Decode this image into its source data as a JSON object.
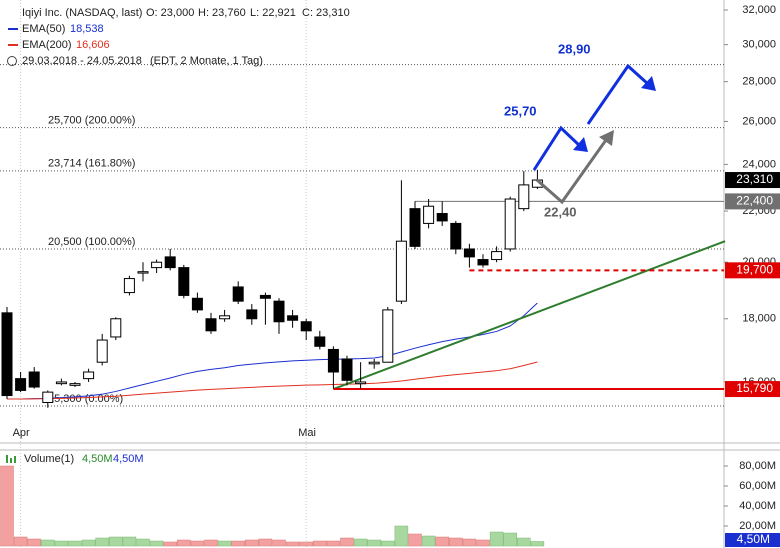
{
  "chart_data": {
    "type": "candlestick",
    "title": "Iqiyi Inc. (NASDAQ, last)",
    "header": [
      "O: 23,000",
      "H: 23,760",
      "L: 22,921",
      "C: 23,310"
    ],
    "period": "29.03.2018 - 24.05.2018",
    "period_note": "(EDT, 2 Monate, 1 Tag)",
    "yscale": "log",
    "ylim": [
      14280,
      32000
    ],
    "yticks": [
      {
        "value": 16000,
        "label": "16,000"
      },
      {
        "value": 18000,
        "label": "18,000"
      },
      {
        "value": 20000,
        "label": "20,000"
      },
      {
        "value": 22000,
        "label": "22,000"
      },
      {
        "value": 24000,
        "label": "24,000"
      },
      {
        "value": 26000,
        "label": "26,000"
      },
      {
        "value": 28000,
        "label": "28,000"
      },
      {
        "value": 30000,
        "label": "30,000"
      },
      {
        "value": 32000,
        "label": "32,000"
      }
    ],
    "categories": [
      null,
      "Apr",
      null,
      null,
      null,
      null,
      null,
      null,
      null,
      null,
      null,
      null,
      null,
      null,
      null,
      null,
      null,
      null,
      null,
      null,
      null,
      null,
      "Mai",
      null,
      null,
      null,
      null,
      null,
      null,
      null,
      null,
      null,
      null,
      null,
      null,
      null,
      null,
      null,
      null,
      null
    ],
    "up_color": "#ffffff",
    "down_color": "#000000",
    "open": [
      18200,
      16100,
      16300,
      15400,
      15950,
      15900,
      16100,
      16600,
      17400,
      18900,
      19600,
      19800,
      20200,
      19800,
      18700,
      18000,
      18000,
      19100,
      18300,
      18800,
      18600,
      18100,
      17900,
      17400,
      17000,
      16700,
      15950,
      16550,
      16600,
      18600,
      22100,
      21500,
      21900,
      21500,
      20500,
      20100,
      20100,
      20500,
      22100,
      23000
    ],
    "high": [
      18400,
      16300,
      16450,
      15750,
      16100,
      16000,
      16400,
      17500,
      18050,
      19500,
      20000,
      20100,
      20500,
      19900,
      18900,
      18200,
      18300,
      19300,
      18500,
      18900,
      18700,
      18300,
      18000,
      17600,
      17100,
      16800,
      16600,
      16700,
      18400,
      23300,
      22400,
      22500,
      22400,
      21600,
      20700,
      20300,
      20600,
      22600,
      23700,
      23760
    ],
    "low": [
      15500,
      15700,
      15800,
      15250,
      15900,
      15850,
      16000,
      16500,
      17300,
      18800,
      19300,
      19600,
      19700,
      18700,
      18200,
      17500,
      17900,
      18500,
      17800,
      17800,
      17500,
      17700,
      17300,
      17000,
      15800,
      15900,
      15800,
      16400,
      16600,
      18500,
      20500,
      21300,
      21400,
      20300,
      19800,
      19800,
      20000,
      20400,
      22000,
      22921
    ],
    "close": [
      15600,
      15750,
      15850,
      15700,
      16000,
      15950,
      16300,
      17300,
      18000,
      19400,
      19650,
      20000,
      19800,
      18800,
      18300,
      17600,
      18100,
      18600,
      18000,
      18700,
      17900,
      17950,
      17600,
      17100,
      16300,
      16050,
      16000,
      16600,
      18300,
      20800,
      20600,
      22200,
      21600,
      20500,
      20200,
      19900,
      20400,
      22500,
      23100,
      23310
    ],
    "series": [
      {
        "name": "EMA(50)",
        "color": "#1a2fd0",
        "last": {
          "value": 18538,
          "label": "18,538"
        },
        "values": [
          15500,
          15500,
          15510,
          15520,
          15540,
          15560,
          15590,
          15640,
          15720,
          15820,
          15920,
          16020,
          16120,
          16230,
          16320,
          16380,
          16430,
          16500,
          16540,
          16580,
          16610,
          16640,
          16660,
          16680,
          16690,
          16700,
          16710,
          16730,
          16800,
          16920,
          17040,
          17150,
          17250,
          17330,
          17400,
          17480,
          17580,
          17760,
          18100,
          18538
        ]
      },
      {
        "name": "EMA(200)",
        "color": "#e03020",
        "last": {
          "value": 16606,
          "label": "16,606"
        },
        "values": [
          15500,
          15500,
          15505,
          15510,
          15520,
          15530,
          15545,
          15560,
          15580,
          15610,
          15640,
          15670,
          15700,
          15730,
          15760,
          15780,
          15800,
          15820,
          15840,
          15860,
          15875,
          15890,
          15905,
          15915,
          15925,
          15935,
          15945,
          15960,
          15990,
          16030,
          16080,
          16130,
          16180,
          16220,
          16260,
          16300,
          16340,
          16400,
          16500,
          16606
        ]
      }
    ],
    "levels": [
      {
        "value": 28900
      },
      {
        "value": 25700,
        "label": "25,700 (200.00%)"
      },
      {
        "value": 23714,
        "label": "23,714 (161.80%)"
      },
      {
        "value": 20500,
        "label": "20,500 (100.00%)"
      },
      {
        "value": 15300,
        "label": "15,300 (0.00%)"
      }
    ],
    "lines": [
      {
        "value": 22400,
        "label": "22,400",
        "color": "#707070",
        "style": "solid",
        "from": 30
      },
      {
        "value": 19700,
        "label": "19,700",
        "color": "#e00000",
        "style": "dashed",
        "from": 34
      },
      {
        "value": 15790,
        "label": "15,790",
        "color": "#e00000",
        "style": "solid",
        "from": 24
      }
    ],
    "last_tag": {
      "value": 23310,
      "label": "23,310"
    },
    "trendline": {
      "color": "#2e7d2e",
      "from": [
        24,
        15790
      ],
      "to": [
        52.8,
        20800
      ]
    },
    "annotations": [
      "25,70",
      "28,90",
      "22,40"
    ],
    "volume": {
      "name": "Volume(1)",
      "last": {
        "value": 4500000,
        "label": "4,50M"
      },
      "ylim": [
        0,
        96000000
      ],
      "yticks": [
        {
          "value": 20000000,
          "label": "20,00M"
        },
        {
          "value": 40000000,
          "label": "40,00M"
        },
        {
          "value": 60000000,
          "label": "60,00M"
        },
        {
          "value": 80000000,
          "label": "80,00M"
        }
      ],
      "values": [
        80000000,
        9000000,
        7000000,
        6000000,
        5000000,
        5000000,
        6000000,
        8000000,
        9000000,
        9000000,
        7000000,
        5000000,
        4000000,
        6000000,
        5000000,
        6000000,
        5000000,
        5000000,
        6000000,
        7000000,
        6000000,
        4000000,
        4000000,
        5000000,
        5000000,
        8000000,
        7000000,
        6000000,
        5000000,
        20000000,
        12000000,
        10000000,
        9000000,
        8000000,
        7000000,
        6000000,
        14000000,
        13000000,
        8000000,
        4500000
      ]
    }
  }
}
